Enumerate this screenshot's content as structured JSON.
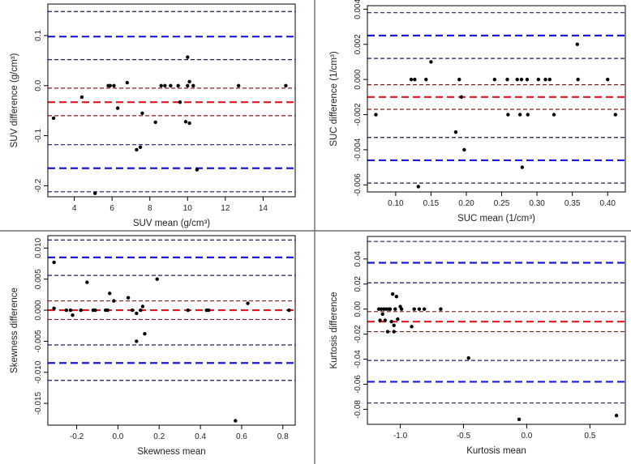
{
  "colors": {
    "mean_line": "#e8141e",
    "loa_line": "#1919e6",
    "ci_line_mean": "#8b1a1a",
    "ci_line_loa": "#1a1a6e",
    "point": "#000000",
    "frame": "#000000",
    "divider": "#555555"
  },
  "chart_data": [
    {
      "type": "scatter",
      "title": "",
      "xlabel": "SUV mean (g/cm³)",
      "ylabel": "SUV difference (g/cm³)",
      "xlim": [
        2.6,
        15.7
      ],
      "ylim": [
        -0.222,
        0.163
      ],
      "xticks": [
        4,
        6,
        8,
        10,
        12,
        14
      ],
      "xtick_labels": [
        "4",
        "6",
        "8",
        "10",
        "12",
        "14"
      ],
      "yticks": [
        -0.2,
        -0.1,
        0.0,
        0.1
      ],
      "ytick_labels": [
        "-0.2",
        "-0.1",
        "0.0",
        "0.1"
      ],
      "lines": [
        {
          "role": "upper-loa-ci-upper",
          "y": 0.148
        },
        {
          "role": "upper-loa",
          "y": 0.098
        },
        {
          "role": "upper-loa-ci-lower",
          "y": 0.052
        },
        {
          "role": "mean-ci-upper",
          "y": -0.005
        },
        {
          "role": "mean",
          "y": -0.033
        },
        {
          "role": "mean-ci-lower",
          "y": -0.06
        },
        {
          "role": "lower-loa-ci-upper",
          "y": -0.118
        },
        {
          "role": "lower-loa",
          "y": -0.165
        },
        {
          "role": "lower-loa-ci-lower",
          "y": -0.212
        }
      ],
      "points": [
        [
          2.9,
          -0.065
        ],
        [
          4.4,
          -0.023
        ],
        [
          5.1,
          -0.215
        ],
        [
          5.8,
          0.0
        ],
        [
          5.9,
          0.0
        ],
        [
          6.1,
          0.0
        ],
        [
          6.3,
          -0.045
        ],
        [
          6.8,
          0.006
        ],
        [
          7.3,
          -0.128
        ],
        [
          7.5,
          -0.123
        ],
        [
          7.6,
          -0.055
        ],
        [
          8.3,
          -0.073
        ],
        [
          8.6,
          0.0
        ],
        [
          8.8,
          0.0
        ],
        [
          9.1,
          0.0
        ],
        [
          9.5,
          0.0
        ],
        [
          9.6,
          -0.033
        ],
        [
          9.9,
          -0.072
        ],
        [
          10.0,
          0.057
        ],
        [
          10.0,
          0.0
        ],
        [
          10.1,
          -0.075
        ],
        [
          10.1,
          0.008
        ],
        [
          10.3,
          0.0
        ],
        [
          10.5,
          -0.168
        ],
        [
          12.7,
          0.0
        ],
        [
          15.2,
          0.0
        ]
      ]
    },
    {
      "type": "scatter",
      "title": "",
      "xlabel": "SUC mean (1/cm³)",
      "ylabel": "SUC difference (1/cm³)",
      "xlim": [
        0.06,
        0.425
      ],
      "ylim": [
        -0.0064,
        0.0042
      ],
      "xticks": [
        0.1,
        0.15,
        0.2,
        0.25,
        0.3,
        0.35,
        0.4
      ],
      "xtick_labels": [
        "0.10",
        "0.15",
        "0.20",
        "0.25",
        "0.30",
        "0.35",
        "0.40"
      ],
      "yticks": [
        -0.006,
        -0.004,
        -0.002,
        0.0,
        0.002,
        0.004
      ],
      "ytick_labels": [
        "-0.006",
        "-0.004",
        "-0.002",
        "0.000",
        "0.002",
        "0.004"
      ],
      "lines": [
        {
          "role": "upper-loa-ci-upper",
          "y": 0.0038
        },
        {
          "role": "upper-loa",
          "y": 0.0025
        },
        {
          "role": "upper-loa-ci-lower",
          "y": 0.0012
        },
        {
          "role": "mean-ci-upper",
          "y": -0.0003
        },
        {
          "role": "mean",
          "y": -0.001
        },
        {
          "role": "mean-ci-lower",
          "y": -0.0017
        },
        {
          "role": "lower-loa-ci-upper",
          "y": -0.0033
        },
        {
          "role": "lower-loa",
          "y": -0.0046
        },
        {
          "role": "lower-loa-ci-lower",
          "y": -0.0059
        }
      ],
      "points": [
        [
          0.072,
          -0.002
        ],
        [
          0.122,
          0.0
        ],
        [
          0.127,
          0.0
        ],
        [
          0.132,
          -0.0061
        ],
        [
          0.143,
          0.0
        ],
        [
          0.15,
          0.001
        ],
        [
          0.185,
          -0.003
        ],
        [
          0.19,
          0.0
        ],
        [
          0.193,
          -0.001
        ],
        [
          0.197,
          -0.004
        ],
        [
          0.24,
          0.0
        ],
        [
          0.258,
          0.0
        ],
        [
          0.259,
          -0.002
        ],
        [
          0.272,
          0.0
        ],
        [
          0.276,
          -0.002
        ],
        [
          0.278,
          0.0
        ],
        [
          0.279,
          -0.005
        ],
        [
          0.286,
          0.0
        ],
        [
          0.287,
          -0.002
        ],
        [
          0.302,
          0.0
        ],
        [
          0.312,
          0.0
        ],
        [
          0.318,
          0.0
        ],
        [
          0.324,
          -0.002
        ],
        [
          0.357,
          0.002
        ],
        [
          0.358,
          0.0
        ],
        [
          0.4,
          0.0
        ],
        [
          0.411,
          -0.002
        ]
      ]
    },
    {
      "type": "scatter",
      "title": "",
      "xlabel": "Skewness mean",
      "ylabel": "Skewness difference",
      "xlim": [
        -0.34,
        0.86
      ],
      "ylim": [
        -0.0185,
        0.012
      ],
      "xticks": [
        -0.2,
        0.0,
        0.2,
        0.4,
        0.6,
        0.8
      ],
      "xtick_labels": [
        "-0.2",
        "0.0",
        "0.2",
        "0.4",
        "0.6",
        "0.8"
      ],
      "yticks": [
        -0.015,
        -0.01,
        -0.005,
        0.0,
        0.005,
        0.01
      ],
      "ytick_labels": [
        "-0.015",
        "-0.010",
        "-0.005",
        "0.000",
        "0.005",
        "0.010"
      ],
      "lines": [
        {
          "role": "upper-loa-ci-upper",
          "y": 0.0113
        },
        {
          "role": "upper-loa",
          "y": 0.0085
        },
        {
          "role": "upper-loa-ci-lower",
          "y": 0.0056
        },
        {
          "role": "mean-ci-upper",
          "y": 0.0015
        },
        {
          "role": "mean",
          "y": 0.0
        },
        {
          "role": "mean-ci-lower",
          "y": -0.0015
        },
        {
          "role": "lower-loa-ci-upper",
          "y": -0.0056
        },
        {
          "role": "lower-loa",
          "y": -0.0085
        },
        {
          "role": "lower-loa-ci-lower",
          "y": -0.0113
        }
      ],
      "points": [
        [
          -0.31,
          0.0077
        ],
        [
          -0.31,
          0.0003
        ],
        [
          -0.25,
          0.0
        ],
        [
          -0.23,
          0.0
        ],
        [
          -0.22,
          -0.0008
        ],
        [
          -0.18,
          0.0
        ],
        [
          -0.15,
          0.0045
        ],
        [
          -0.12,
          0.0
        ],
        [
          -0.11,
          0.0
        ],
        [
          -0.06,
          0.0
        ],
        [
          -0.05,
          0.0
        ],
        [
          -0.04,
          0.0027
        ],
        [
          -0.02,
          0.0015
        ],
        [
          0.05,
          0.002
        ],
        [
          0.07,
          0.0
        ],
        [
          0.09,
          -0.0005
        ],
        [
          0.09,
          -0.005
        ],
        [
          0.11,
          0.0
        ],
        [
          0.12,
          0.0006
        ],
        [
          0.13,
          -0.0038
        ],
        [
          0.19,
          0.005
        ],
        [
          0.34,
          0.0
        ],
        [
          0.43,
          0.0
        ],
        [
          0.44,
          0.0
        ],
        [
          0.57,
          -0.0178
        ],
        [
          0.63,
          0.0011
        ],
        [
          0.83,
          0.0
        ]
      ]
    },
    {
      "type": "scatter",
      "title": "",
      "xlabel": "Kurtosis mean",
      "ylabel": "Kurtosis difference",
      "xlim": [
        -1.26,
        0.78
      ],
      "ylim": [
        -0.092,
        0.058
      ],
      "xticks": [
        -1.0,
        -0.5,
        0.0,
        0.5
      ],
      "xtick_labels": [
        "-1.0",
        "-0.5",
        "0.0",
        "0.5"
      ],
      "yticks": [
        -0.08,
        -0.06,
        -0.04,
        -0.02,
        0.0,
        0.02,
        0.04
      ],
      "ytick_labels": [
        "-0.08",
        "-0.06",
        "-0.04",
        "-0.02",
        "0.00",
        "0.02",
        "0.04"
      ],
      "lines": [
        {
          "role": "upper-loa-ci-upper",
          "y": 0.054
        },
        {
          "role": "upper-loa",
          "y": 0.037
        },
        {
          "role": "upper-loa-ci-lower",
          "y": 0.021
        },
        {
          "role": "mean-ci-upper",
          "y": -0.002
        },
        {
          "role": "mean",
          "y": -0.01
        },
        {
          "role": "mean-ci-lower",
          "y": -0.018
        },
        {
          "role": "lower-loa-ci-upper",
          "y": -0.041
        },
        {
          "role": "lower-loa",
          "y": -0.058
        },
        {
          "role": "lower-loa-ci-lower",
          "y": -0.075
        }
      ],
      "points": [
        [
          -1.17,
          0.0
        ],
        [
          -1.16,
          -0.009
        ],
        [
          -1.15,
          0.0
        ],
        [
          -1.14,
          -0.004
        ],
        [
          -1.13,
          0.0
        ],
        [
          -1.12,
          -0.009
        ],
        [
          -1.11,
          0.0
        ],
        [
          -1.1,
          -0.018
        ],
        [
          -1.09,
          0.0
        ],
        [
          -1.08,
          0.0
        ],
        [
          -1.07,
          -0.01
        ],
        [
          -1.06,
          0.012
        ],
        [
          -1.05,
          -0.018
        ],
        [
          -1.05,
          -0.013
        ],
        [
          -1.04,
          0.0
        ],
        [
          -1.03,
          0.01
        ],
        [
          -1.02,
          -0.008
        ],
        [
          -1.0,
          0.002
        ],
        [
          -0.99,
          0.0
        ],
        [
          -0.91,
          -0.014
        ],
        [
          -0.89,
          0.0
        ],
        [
          -0.85,
          0.0
        ],
        [
          -0.81,
          0.0
        ],
        [
          -0.68,
          0.0
        ],
        [
          -0.46,
          -0.039
        ],
        [
          -0.06,
          -0.088
        ],
        [
          0.71,
          -0.085
        ]
      ]
    }
  ]
}
